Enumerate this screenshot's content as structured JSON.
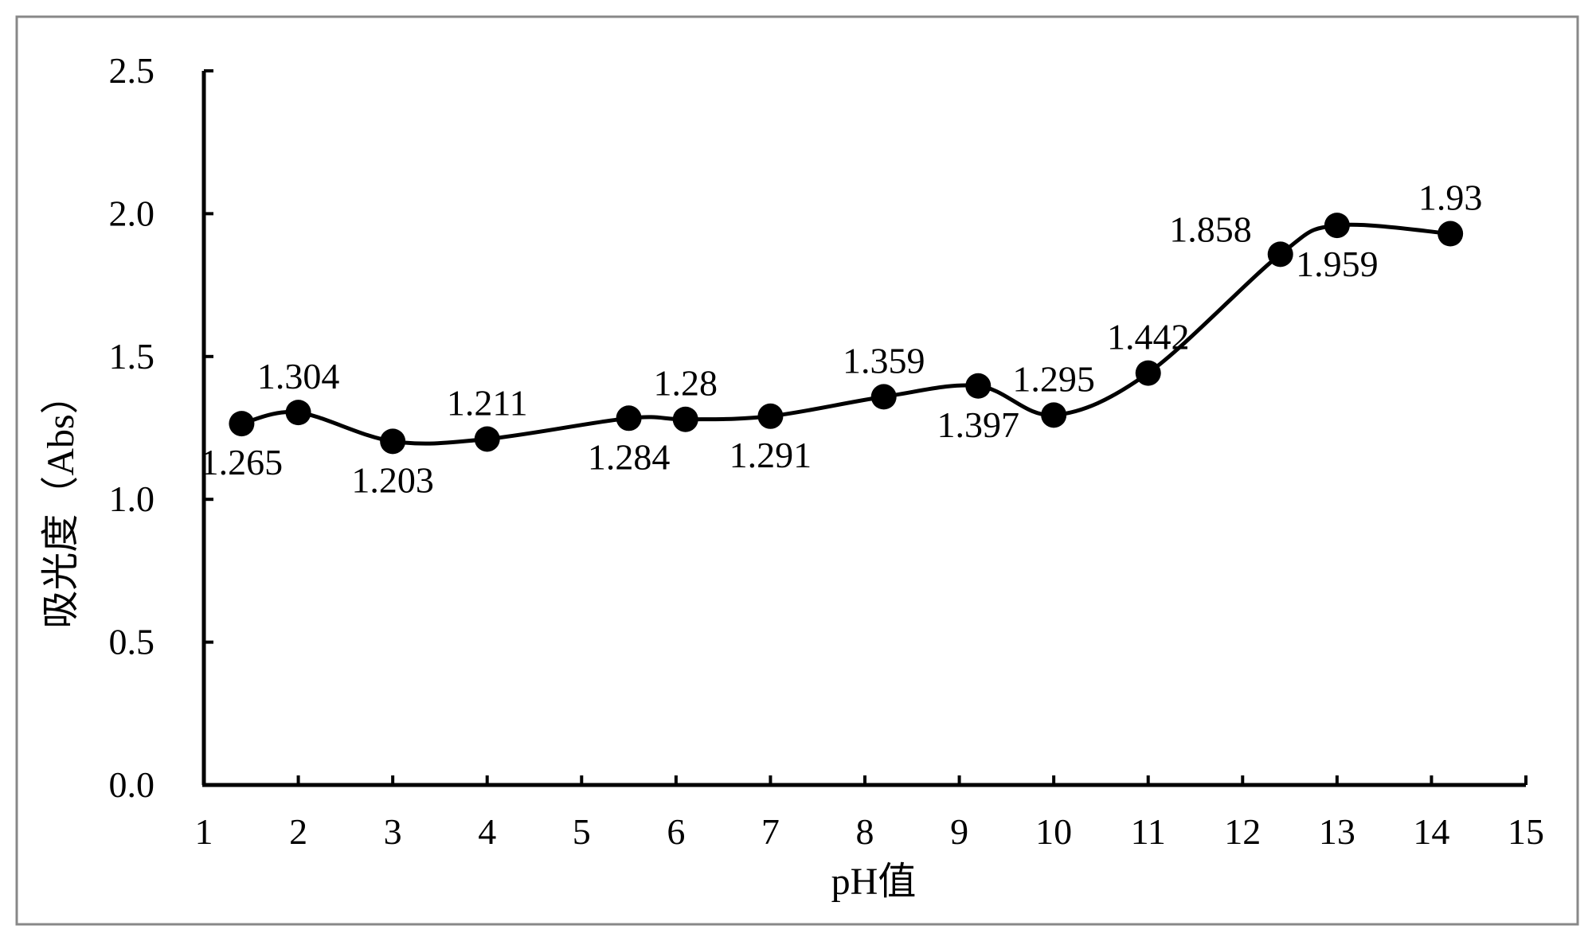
{
  "chart_data": {
    "type": "line",
    "smooth": true,
    "xlabel": "pH值",
    "ylabel": "吸光度（Abs）",
    "xlim": [
      1,
      15
    ],
    "ylim": [
      0.0,
      2.5
    ],
    "xticks": [
      "1",
      "2",
      "3",
      "4",
      "5",
      "6",
      "7",
      "8",
      "9",
      "10",
      "11",
      "12",
      "13",
      "14",
      "15"
    ],
    "yticks": [
      "0.0",
      "0.5",
      "1.0",
      "1.5",
      "2.0",
      "2.5"
    ],
    "grid": false,
    "legend": "none",
    "series": [
      {
        "x": [
          1.4,
          2.0,
          3.0,
          4.0,
          5.5,
          6.1,
          7.0,
          8.2,
          9.2,
          10.0,
          11.0,
          12.4,
          13.0,
          14.2
        ],
        "y": [
          1.265,
          1.304,
          1.203,
          1.211,
          1.284,
          1.28,
          1.291,
          1.359,
          1.397,
          1.295,
          1.442,
          1.858,
          1.959,
          1.93
        ],
        "labels": [
          "1.265",
          "1.304",
          "1.203",
          "1.211",
          "1.284",
          "1.28",
          "1.291",
          "1.359",
          "1.397",
          "1.295",
          "1.442",
          "1.858",
          "1.959",
          "1.93"
        ],
        "label_positions": [
          "below",
          "above",
          "below",
          "above",
          "below",
          "above",
          "below",
          "above",
          "below",
          "above",
          "above",
          "left",
          "below",
          "above"
        ]
      }
    ],
    "colors": {
      "line": "#000000",
      "marker": "#000000",
      "frame": "#888888"
    }
  }
}
